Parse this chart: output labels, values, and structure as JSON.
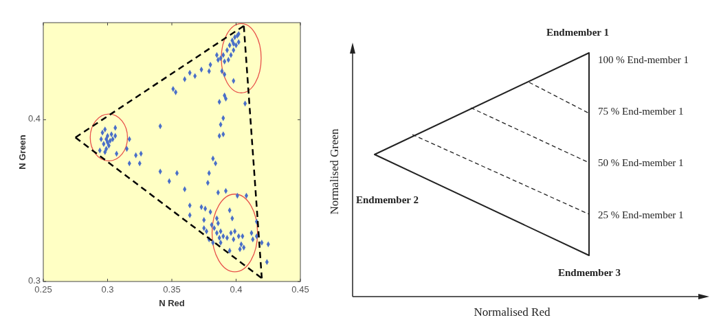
{
  "chart_data": [
    {
      "type": "scatter",
      "xlabel": "N Red",
      "ylabel": "N Green",
      "xlim": [
        0.25,
        0.45
      ],
      "ylim": [
        0.3,
        0.46
      ],
      "xticks": [
        0.25,
        0.3,
        0.35,
        0.4,
        0.45
      ],
      "yticks": [
        0.3,
        0.4
      ],
      "series": [
        {
          "type": "scatter",
          "color": "#4a6fc8",
          "marker": "diamond",
          "x": [
            0.398,
            0.386,
            0.402,
            0.39,
            0.393,
            0.395,
            0.397,
            0.399,
            0.401,
            0.4,
            0.398,
            0.396,
            0.402,
            0.394,
            0.391,
            0.388,
            0.385,
            0.38,
            0.379,
            0.373,
            0.368,
            0.364,
            0.36,
            0.351,
            0.353,
            0.389,
            0.391,
            0.398,
            0.391,
            0.387,
            0.392,
            0.407,
            0.39,
            0.388,
            0.387,
            0.39,
            0.341,
            0.299,
            0.294,
            0.306,
            0.296,
            0.298,
            0.3,
            0.302,
            0.297,
            0.299,
            0.301,
            0.303,
            0.295,
            0.3,
            0.304,
            0.298,
            0.317,
            0.306,
            0.307,
            0.315,
            0.326,
            0.322,
            0.317,
            0.325,
            0.341,
            0.354,
            0.348,
            0.36,
            0.382,
            0.384,
            0.379,
            0.378,
            0.386,
            0.392,
            0.401,
            0.408,
            0.364,
            0.364,
            0.373,
            0.376,
            0.38,
            0.395,
            0.397,
            0.385,
            0.416,
            0.375,
            0.375,
            0.377,
            0.381,
            0.383,
            0.386,
            0.385,
            0.388,
            0.39,
            0.393,
            0.387,
            0.396,
            0.399,
            0.398,
            0.395,
            0.402,
            0.404,
            0.405,
            0.406,
            0.403,
            0.412,
            0.413,
            0.416,
            0.42,
            0.425,
            0.424,
            0.379,
            0.382,
            0.388
          ],
          "values": [
            0.447,
            0.437,
            0.453,
            0.44,
            0.443,
            0.446,
            0.449,
            0.451,
            0.452,
            0.446,
            0.443,
            0.44,
            0.448,
            0.437,
            0.436,
            0.438,
            0.44,
            0.434,
            0.43,
            0.431,
            0.427,
            0.429,
            0.425,
            0.419,
            0.417,
            0.43,
            0.428,
            0.424,
            0.415,
            0.411,
            0.413,
            0.41,
            0.401,
            0.397,
            0.39,
            0.391,
            0.396,
            0.388,
            0.381,
            0.395,
            0.392,
            0.394,
            0.39,
            0.387,
            0.385,
            0.382,
            0.384,
            0.391,
            0.388,
            0.386,
            0.388,
            0.38,
            0.388,
            0.39,
            0.379,
            0.382,
            0.379,
            0.378,
            0.373,
            0.373,
            0.368,
            0.367,
            0.362,
            0.357,
            0.376,
            0.373,
            0.367,
            0.361,
            0.355,
            0.356,
            0.353,
            0.353,
            0.347,
            0.341,
            0.346,
            0.345,
            0.343,
            0.344,
            0.339,
            0.339,
            0.337,
            0.338,
            0.333,
            0.331,
            0.335,
            0.333,
            0.336,
            0.33,
            0.331,
            0.328,
            0.327,
            0.327,
            0.33,
            0.331,
            0.326,
            0.319,
            0.328,
            0.323,
            0.328,
            0.321,
            0.32,
            0.33,
            0.326,
            0.328,
            0.324,
            0.323,
            0.312,
            0.326,
            0.324,
            0.324
          ]
        },
        {
          "type": "line",
          "color": "#000000",
          "line_style": "dashed",
          "marker": "none",
          "x": [
            0.275,
            0.406
          ],
          "values": [
            0.389,
            0.458
          ]
        },
        {
          "type": "line",
          "color": "#000000",
          "line_style": "dashed",
          "marker": "none",
          "x": [
            0.406,
            0.42
          ],
          "values": [
            0.458,
            0.302
          ]
        },
        {
          "type": "line",
          "color": "#000000",
          "line_style": "dashed",
          "marker": "none",
          "x": [
            0.275,
            0.42
          ],
          "values": [
            0.389,
            0.302
          ]
        }
      ]
    },
    {
      "type": "other",
      "xlabel": "Normalised Red",
      "ylabel": "Normalised Green",
      "annotations": [
        "Endmember 1",
        "Endmember 2",
        "Endmember 3",
        "100 % End-member 1",
        "75 % End-member 1",
        "50 % End-member 1",
        "25 % End-member 1"
      ]
    }
  ]
}
